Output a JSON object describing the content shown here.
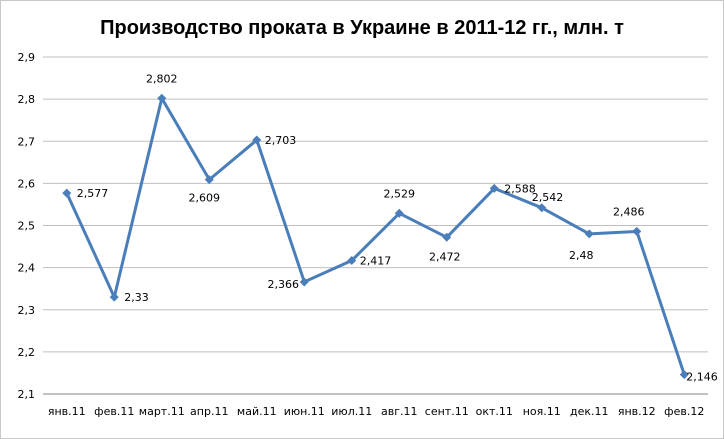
{
  "chart_data": {
    "type": "line",
    "title": "Производство проката в Украине в 2011-12 гг., млн. т",
    "categories": [
      "янв.11",
      "фев.11",
      "март.11",
      "апр.11",
      "май.11",
      "июн.11",
      "июл.11",
      "авг.11",
      "сент.11",
      "окт.11",
      "ноя.11",
      "дек.11",
      "янв.12",
      "фев.12"
    ],
    "values": [
      2.577,
      2.33,
      2.802,
      2.609,
      2.703,
      2.366,
      2.417,
      2.529,
      2.472,
      2.588,
      2.542,
      2.48,
      2.486,
      2.146
    ],
    "data_labels": [
      "2,577",
      "2,33",
      "2,802",
      "2,609",
      "2,703",
      "2,366",
      "2,417",
      "2,529",
      "2,472",
      "2,588",
      "2,542",
      "2,48",
      "2,486",
      "2,146"
    ],
    "y_ticks": [
      "2,1",
      "2,2",
      "2,3",
      "2,4",
      "2,5",
      "2,6",
      "2,7",
      "2,8",
      "2,9"
    ],
    "ylim": [
      2.1,
      2.9
    ],
    "grid": true,
    "legend": "none",
    "line_color": "#4a7ebb",
    "grid_color": "#bfbfbf"
  }
}
